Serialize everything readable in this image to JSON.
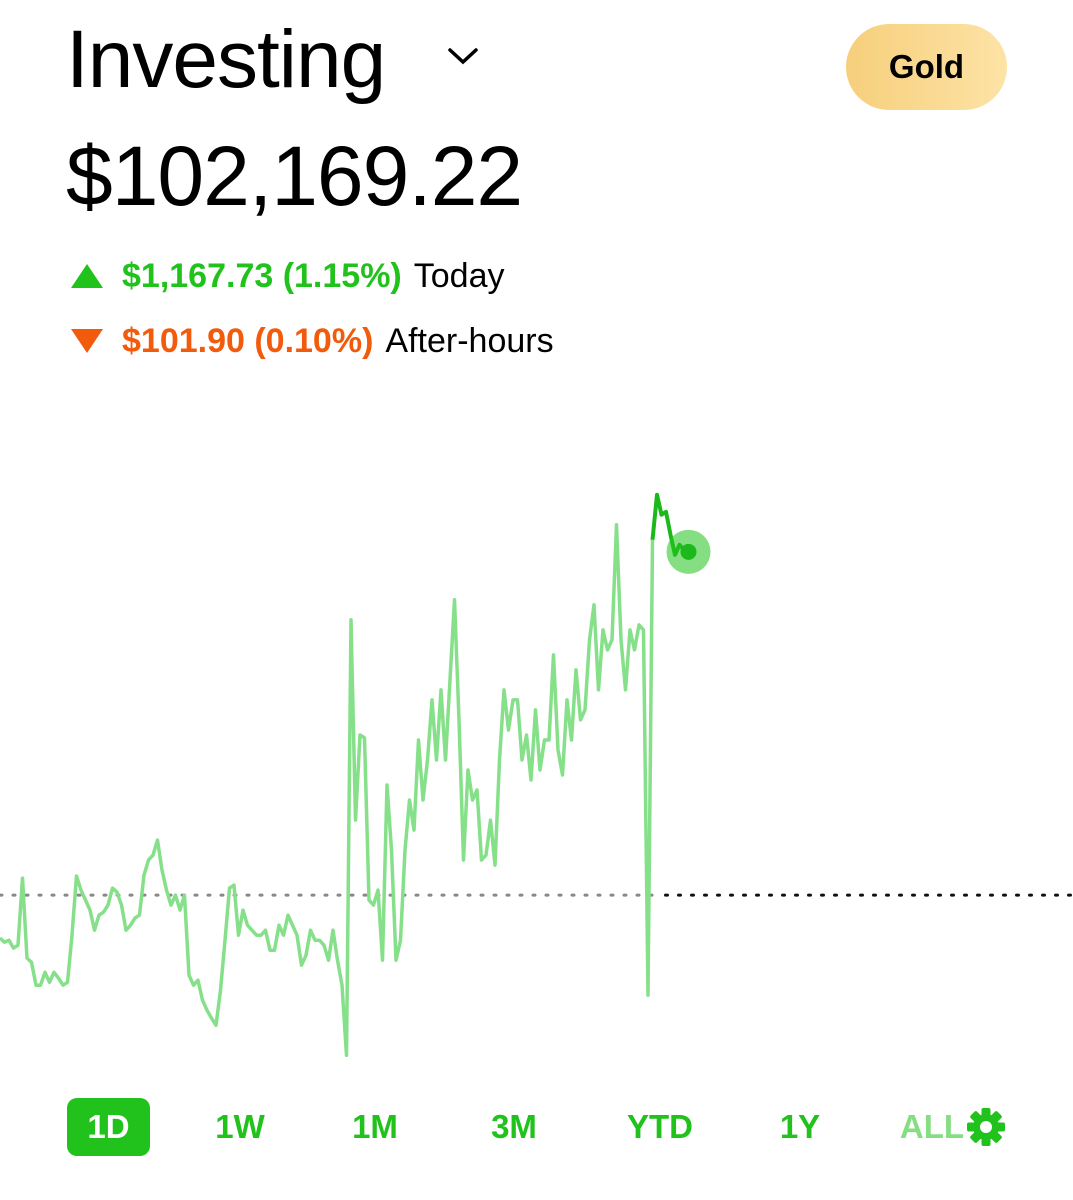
{
  "header": {
    "title": "Investing",
    "badge": "Gold",
    "total": "$102,169.22",
    "today": {
      "amount": "$1,167.73 (1.15%)",
      "label": "Today"
    },
    "after_hours": {
      "amount": "$101.90 (0.10%)",
      "label": "After-hours"
    }
  },
  "ranges": [
    "1D",
    "1W",
    "1M",
    "3M",
    "YTD",
    "1Y",
    "ALL"
  ],
  "chart_data": {
    "type": "line",
    "ylim": [
      -560,
      1410
    ],
    "baseline": 0,
    "series": [
      {
        "color": "#86e08a",
        "values": [
          -146,
          -160,
          -153,
          -180,
          -170,
          58,
          -214,
          -228,
          -306,
          -306,
          -262,
          -296,
          -262,
          -282,
          -306,
          -296,
          -136,
          65,
          17,
          -17,
          -51,
          -119,
          -68,
          -58,
          -34,
          24,
          10,
          -34,
          -119,
          -102,
          -78,
          -68,
          68,
          119,
          136,
          187,
          85,
          17,
          -34,
          0,
          -51,
          0,
          -272,
          -306,
          -289,
          -357,
          -391,
          -418,
          -442,
          -323,
          -153,
          24,
          34,
          -136,
          -51,
          -102,
          -119,
          -136,
          -136,
          -119,
          -187,
          -187,
          -102,
          -136,
          -68,
          -102,
          -136,
          -238,
          -204,
          -119,
          -153,
          -153,
          -170,
          -221,
          -119,
          -221,
          -306,
          -544,
          935,
          255,
          544,
          534,
          -17,
          -34,
          17,
          -221,
          374,
          153,
          -221,
          -153,
          153,
          323,
          221,
          527,
          323,
          459,
          663,
          459,
          697,
          459,
          731,
          1003,
          595,
          119,
          425,
          323,
          357,
          119,
          136,
          255,
          102,
          459,
          697,
          561,
          663,
          663,
          459,
          544,
          391,
          629,
          425,
          527,
          527,
          816,
          493,
          408,
          663,
          527,
          765,
          595,
          629,
          867,
          986,
          697,
          901,
          833,
          867,
          1258,
          867,
          697,
          901,
          833,
          918,
          901,
          -340,
          1207,
          null,
          null,
          null,
          null,
          null,
          null,
          null,
          null
        ]
      },
      {
        "color": "#1cb81c",
        "values": [
          null,
          null,
          null,
          null,
          null,
          null,
          null,
          null,
          null,
          null,
          null,
          null,
          null,
          null,
          null,
          null,
          null,
          null,
          null,
          null,
          null,
          null,
          null,
          null,
          null,
          null,
          null,
          null,
          null,
          null,
          null,
          null,
          null,
          null,
          null,
          null,
          null,
          null,
          null,
          null,
          null,
          null,
          null,
          null,
          null,
          null,
          null,
          null,
          null,
          null,
          null,
          null,
          null,
          null,
          null,
          null,
          null,
          null,
          null,
          null,
          null,
          null,
          null,
          null,
          null,
          null,
          null,
          null,
          null,
          null,
          null,
          null,
          null,
          null,
          null,
          null,
          null,
          null,
          null,
          null,
          null,
          null,
          null,
          null,
          null,
          null,
          null,
          null,
          null,
          null,
          null,
          null,
          null,
          null,
          null,
          null,
          null,
          null,
          null,
          null,
          null,
          null,
          null,
          null,
          null,
          null,
          null,
          null,
          null,
          null,
          null,
          null,
          null,
          null,
          null,
          null,
          null,
          null,
          null,
          null,
          null,
          null,
          null,
          null,
          null,
          null,
          null,
          null,
          null,
          null,
          null,
          null,
          null,
          null,
          null,
          null,
          null,
          null,
          null,
          null,
          null,
          null,
          null,
          null,
          null,
          1207,
          1360,
          1292,
          1302,
          1224,
          1156,
          1190,
          1173,
          1166
        ]
      }
    ]
  }
}
